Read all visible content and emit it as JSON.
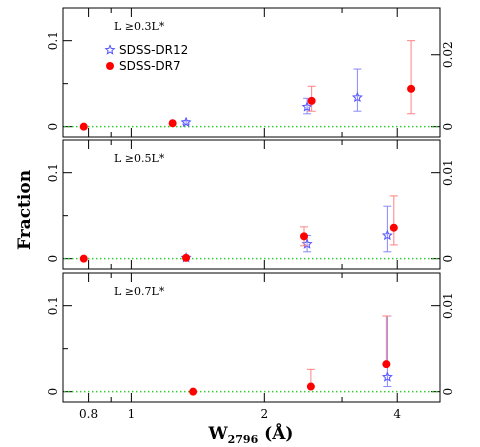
{
  "chart_data": {
    "type": "scatter",
    "xlabel": "W",
    "xlabel_sub": "2796",
    "xlabel_unit": "(Å)",
    "ylabel": "Fraction",
    "xscale": "log",
    "xlim": [
      0.7,
      5.0
    ],
    "x_ticks": [
      {
        "value": 0.8,
        "label": "0.8"
      },
      {
        "value": 1.0,
        "label": "1"
      },
      {
        "value": 2.0,
        "label": "2"
      },
      {
        "value": 4.0,
        "label": "4"
      }
    ],
    "reference_line": {
      "y": 0,
      "color": "#33cc33",
      "style": "dotted"
    },
    "legend": [
      {
        "name": "SDSS-DR12",
        "marker": "star",
        "color": "#5555ff"
      },
      {
        "name": "SDSS-DR7",
        "marker": "circle",
        "color": "#ff0000"
      }
    ],
    "panels": [
      {
        "label": "L ≥0.3L*",
        "ylim": [
          -0.012,
          0.138
        ],
        "left_ticks": [
          {
            "value": 0,
            "label": "0"
          },
          {
            "value": 0.1,
            "label": "0.1"
          }
        ],
        "right_scale_max": 0.033,
        "right_ticks": [
          {
            "value": 0,
            "label": "0"
          },
          {
            "value": 0.02,
            "label": "0.02"
          }
        ],
        "show_legend": true,
        "series": [
          {
            "name": "SDSS-DR12",
            "points": [
              {
                "x": 1.33,
                "y": 0.005,
                "lo": 0.003,
                "hi": 0.007
              },
              {
                "x": 2.5,
                "y": 0.023,
                "lo": 0.015,
                "hi": 0.033
              },
              {
                "x": 3.25,
                "y": 0.034,
                "lo": 0.018,
                "hi": 0.067
              }
            ]
          },
          {
            "name": "SDSS-DR7",
            "points": [
              {
                "x": 0.78,
                "y": 0.0,
                "lo": null,
                "hi": null
              },
              {
                "x": 1.24,
                "y": 0.004,
                "lo": null,
                "hi": null
              },
              {
                "x": 2.56,
                "y": 0.03,
                "lo": 0.018,
                "hi": 0.047
              },
              {
                "x": 4.3,
                "y": 0.044,
                "lo": 0.015,
                "hi": 0.1
              }
            ]
          }
        ]
      },
      {
        "label": "L ≥0.5L*",
        "ylim": [
          -0.012,
          0.138
        ],
        "left_ticks": [
          {
            "value": 0,
            "label": "0"
          },
          {
            "value": 0.1,
            "label": "0.1"
          }
        ],
        "right_scale_max": 0.0138,
        "right_ticks": [
          {
            "value": 0,
            "label": "0"
          },
          {
            "value": 0.01,
            "label": "0.01"
          }
        ],
        "show_legend": false,
        "series": [
          {
            "name": "SDSS-DR12",
            "points": [
              {
                "x": 1.33,
                "y": 0.001,
                "lo": null,
                "hi": null
              },
              {
                "x": 2.5,
                "y": 0.017,
                "lo": 0.008,
                "hi": 0.027
              },
              {
                "x": 3.8,
                "y": 0.027,
                "lo": 0.008,
                "hi": 0.061
              }
            ]
          },
          {
            "name": "SDSS-DR7",
            "points": [
              {
                "x": 0.78,
                "y": 0.0,
                "lo": null,
                "hi": null
              },
              {
                "x": 1.33,
                "y": 0.001,
                "lo": null,
                "hi": null
              },
              {
                "x": 2.46,
                "y": 0.026,
                "lo": 0.015,
                "hi": 0.037
              },
              {
                "x": 3.93,
                "y": 0.036,
                "lo": 0.016,
                "hi": 0.073
              }
            ]
          }
        ]
      },
      {
        "label": "L ≥0.7L*",
        "ylim": [
          -0.012,
          0.138
        ],
        "left_ticks": [
          {
            "value": 0,
            "label": "0"
          },
          {
            "value": 0.1,
            "label": "0.1"
          }
        ],
        "right_scale_max": 0.0138,
        "right_ticks": [
          {
            "value": 0,
            "label": "0"
          },
          {
            "value": 0.01,
            "label": "0.01"
          }
        ],
        "show_legend": false,
        "series": [
          {
            "name": "SDSS-DR12",
            "points": [
              {
                "x": 3.8,
                "y": 0.017,
                "lo": 0.006,
                "hi": 0.088
              }
            ]
          },
          {
            "name": "SDSS-DR7",
            "points": [
              {
                "x": 1.38,
                "y": 0.0,
                "lo": null,
                "hi": null
              },
              {
                "x": 2.55,
                "y": 0.006,
                "lo": null,
                "hi": 0.026
              },
              {
                "x": 3.78,
                "y": 0.032,
                "lo": null,
                "hi": 0.088
              }
            ]
          }
        ]
      }
    ]
  }
}
